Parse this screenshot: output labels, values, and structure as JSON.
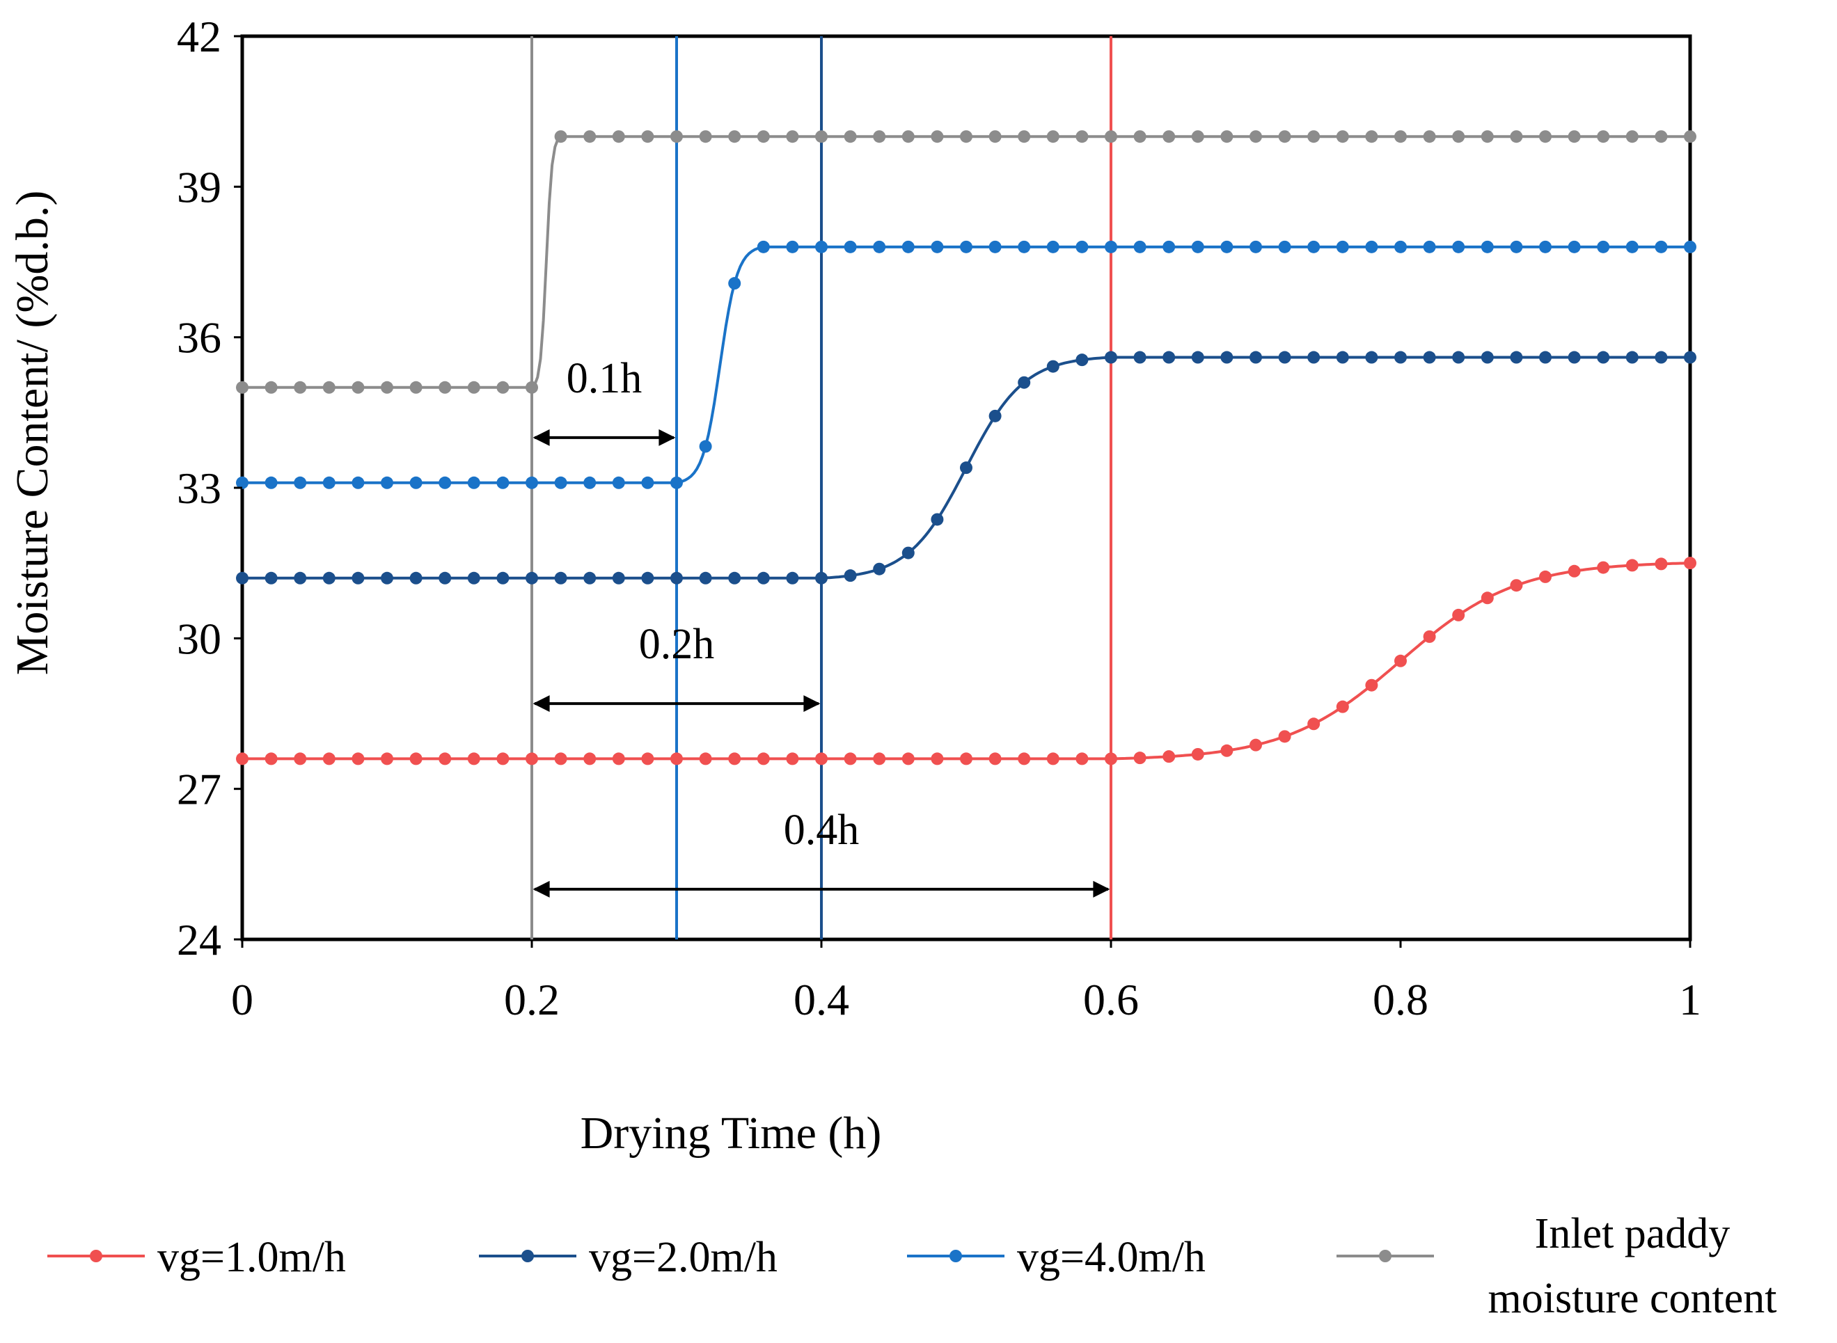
{
  "chart_data": {
    "type": "line",
    "xlabel": "Drying Time (h)",
    "ylabel": "Moisture Content/ (%d.b.)",
    "xlim": [
      0,
      1
    ],
    "ylim": [
      24,
      42
    ],
    "x_ticks": [
      "0",
      "0.2",
      "0.4",
      "0.6",
      "0.8",
      "1"
    ],
    "x_tick_values": [
      0,
      0.2,
      0.4,
      0.6,
      0.8,
      1
    ],
    "y_ticks": [
      "24",
      "27",
      "30",
      "33",
      "36",
      "39",
      "42"
    ],
    "y_tick_values": [
      24,
      27,
      30,
      33,
      36,
      39,
      42
    ],
    "grid": false,
    "legend_position": "bottom",
    "series": [
      {
        "name": "vg=1.0m/h",
        "color": "#F05050",
        "start": 27.6,
        "end": 31.5,
        "step_start": 0.6,
        "step_end": 1.0
      },
      {
        "name": "vg=2.0m/h",
        "color": "#1B4F8C",
        "start": 31.2,
        "end": 35.6,
        "step_start": 0.4,
        "step_end": 0.6
      },
      {
        "name": "vg=4.0m/h",
        "color": "#1A73C8",
        "start": 33.1,
        "end": 37.8,
        "step_start": 0.3,
        "step_end": 0.36
      },
      {
        "name": "Inlet paddy moisture content",
        "name_lines": [
          "Inlet paddy",
          "moisture content"
        ],
        "color": "#8C8C8C",
        "start": 35.0,
        "end": 40.0,
        "step_start": 0.2,
        "step_end": 0.22
      }
    ],
    "vertical_markers": [
      {
        "x": 0.2,
        "color": "#8C8C8C"
      },
      {
        "x": 0.3,
        "color": "#1A73C8"
      },
      {
        "x": 0.4,
        "color": "#1B4F8C"
      },
      {
        "x": 0.6,
        "color": "#F05050"
      }
    ],
    "annotations": [
      {
        "label": "0.1h",
        "x_from": 0.2,
        "x_to": 0.3,
        "arrow_y": 34.0,
        "label_y": 34.9
      },
      {
        "label": "0.2h",
        "x_from": 0.2,
        "x_to": 0.4,
        "arrow_y": 28.7,
        "label_y": 29.6
      },
      {
        "label": "0.4h",
        "x_from": 0.2,
        "x_to": 0.6,
        "arrow_y": 25.0,
        "label_y": 25.9
      }
    ]
  }
}
